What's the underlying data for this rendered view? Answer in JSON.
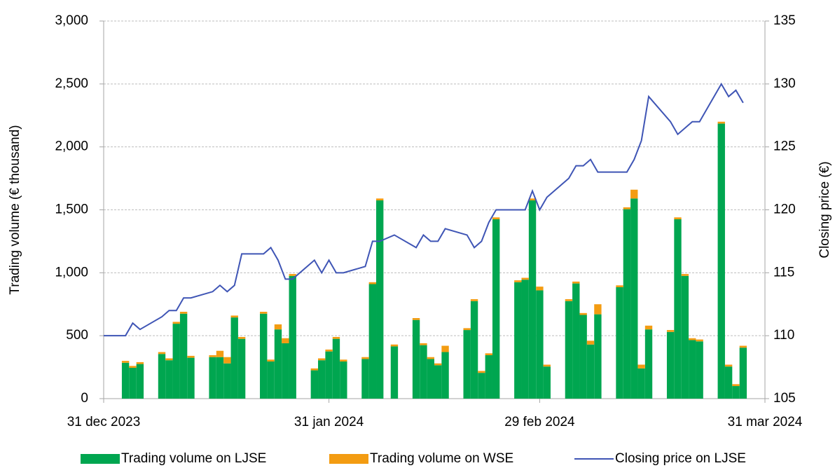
{
  "chart_data": {
    "type": "bar_line",
    "x": [
      "2023-12-31",
      "2024-01-03",
      "2024-01-04",
      "2024-01-05",
      "2024-01-08",
      "2024-01-09",
      "2024-01-10",
      "2024-01-11",
      "2024-01-12",
      "2024-01-15",
      "2024-01-16",
      "2024-01-17",
      "2024-01-18",
      "2024-01-19",
      "2024-01-22",
      "2024-01-23",
      "2024-01-24",
      "2024-01-25",
      "2024-01-26",
      "2024-01-29",
      "2024-01-30",
      "2024-01-31",
      "2024-02-01",
      "2024-02-02",
      "2024-02-05",
      "2024-02-06",
      "2024-02-07",
      "2024-02-09",
      "2024-02-12",
      "2024-02-13",
      "2024-02-14",
      "2024-02-15",
      "2024-02-16",
      "2024-02-19",
      "2024-02-20",
      "2024-02-21",
      "2024-02-22",
      "2024-02-23",
      "2024-02-26",
      "2024-02-27",
      "2024-02-28",
      "2024-02-29",
      "2024-03-01",
      "2024-03-04",
      "2024-03-05",
      "2024-03-06",
      "2024-03-07",
      "2024-03-08",
      "2024-03-11",
      "2024-03-12",
      "2024-03-13",
      "2024-03-14",
      "2024-03-15",
      "2024-03-18",
      "2024-03-19",
      "2024-03-20",
      "2024-03-21",
      "2024-03-22",
      "2024-03-25",
      "2024-03-26",
      "2024-03-27",
      "2024-03-28"
    ],
    "series": [
      {
        "name": "Trading volume on LJSE",
        "type": "bar",
        "color": "#00a650",
        "axis": "y",
        "values": [
          null,
          285,
          245,
          275,
          355,
          305,
          595,
          675,
          325,
          330,
          330,
          280,
          645,
          475,
          675,
          295,
          550,
          440,
          975,
          225,
          305,
          375,
          475,
          295,
          315,
          910,
          1575,
          415,
          625,
          425,
          315,
          265,
          370,
          545,
          775,
          205,
          345,
          1425,
          925,
          945,
          1575,
          860,
          255,
          775,
          915,
          665,
          430,
          670,
          885,
          1505,
          1590,
          240,
          550,
          530,
          1425,
          975,
          465,
          455,
          2185,
          255,
          100,
          405
        ]
      },
      {
        "name": "Trading volume on WSE",
        "type": "bar",
        "color": "#f39c12",
        "axis": "y",
        "values": [
          null,
          15,
          15,
          15,
          15,
          15,
          15,
          15,
          15,
          15,
          50,
          50,
          15,
          15,
          15,
          15,
          40,
          40,
          15,
          15,
          15,
          15,
          15,
          15,
          15,
          15,
          15,
          15,
          15,
          15,
          15,
          15,
          50,
          15,
          15,
          15,
          15,
          15,
          15,
          15,
          15,
          30,
          15,
          15,
          15,
          15,
          30,
          80,
          15,
          15,
          70,
          30,
          30,
          15,
          15,
          15,
          15,
          15,
          15,
          15,
          15,
          15
        ]
      },
      {
        "name": "Closing price on LJSE",
        "type": "line",
        "color": "#3f55b5",
        "axis": "y2",
        "values": [
          110,
          110,
          111,
          110.5,
          111.5,
          112,
          112,
          113,
          113,
          113.5,
          114,
          113.5,
          114,
          116.5,
          116.5,
          117,
          116,
          114.5,
          114.5,
          116,
          115,
          116,
          115,
          115,
          115.5,
          117.5,
          117.5,
          118,
          117,
          118,
          117.5,
          117.5,
          118.5,
          118,
          117,
          117.5,
          119,
          120,
          120,
          120,
          121.5,
          120,
          121,
          122.5,
          123.5,
          123.5,
          124,
          123,
          123,
          123,
          124,
          125.5,
          129,
          127,
          126,
          126.5,
          127,
          127,
          130,
          129,
          129.5,
          128.5
        ]
      }
    ],
    "y_label": "Trading volume (€ thousand)",
    "y2_label": "Closing price (€)",
    "xlim": [
      "2023-12-31",
      "2024-03-31"
    ],
    "xticks": [
      {
        "value": "2023-12-31",
        "label": "31 dec 2023"
      },
      {
        "value": "2024-01-31",
        "label": "31 jan 2024"
      },
      {
        "value": "2024-02-29",
        "label": "29 feb 2024"
      },
      {
        "value": "2024-03-31",
        "label": "31 mar 2024"
      }
    ],
    "ylim": [
      0,
      3000
    ],
    "yticks": [
      0,
      {
        "value": 500,
        "label": "500"
      },
      {
        "value": 1000,
        "label": "1,000"
      },
      {
        "value": 1500,
        "label": "1,500"
      },
      {
        "value": 2000,
        "label": "2,000"
      },
      {
        "value": 2500,
        "label": "2,500"
      },
      {
        "value": 3000,
        "label": "3,000"
      }
    ],
    "y2lim": [
      105,
      135
    ],
    "y2ticks": [
      105,
      110,
      115,
      120,
      125,
      130,
      135
    ],
    "grid": true,
    "legend": "bottom"
  }
}
